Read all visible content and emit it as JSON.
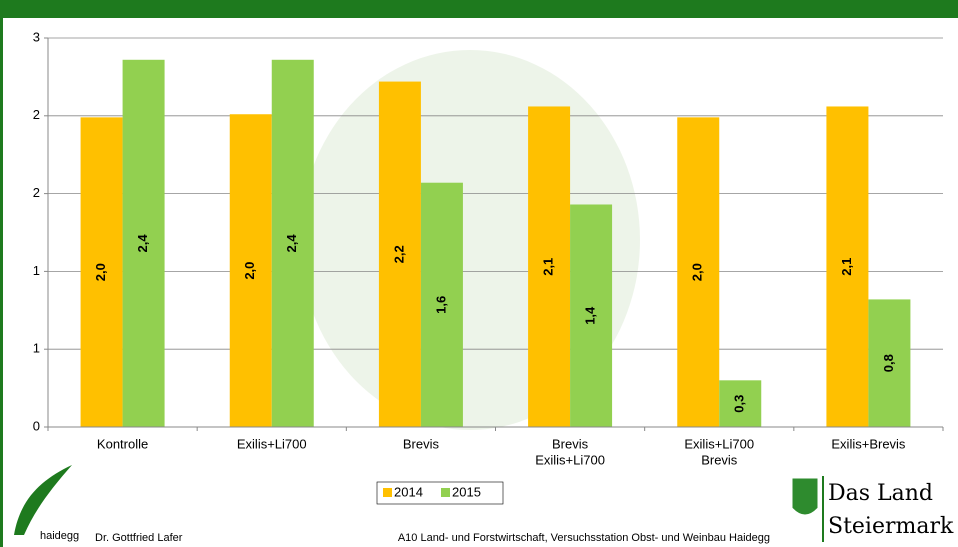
{
  "chart_data": {
    "type": "bar",
    "categories": [
      [
        "Kontrolle"
      ],
      [
        "Exilis+Li700"
      ],
      [
        "Brevis"
      ],
      [
        "Brevis",
        "Exilis+Li700"
      ],
      [
        "Exilis+Li700",
        "Brevis"
      ],
      [
        "Exilis+Brevis"
      ]
    ],
    "series": [
      {
        "name": "2014",
        "color": "#ffc000",
        "values": [
          1.99,
          2.01,
          2.22,
          2.06,
          1.99,
          2.06
        ],
        "value_labels": [
          "2,0",
          "2,0",
          "2,2",
          "2,1",
          "2,0",
          "2,1"
        ]
      },
      {
        "name": "2015",
        "color": "#92d050",
        "values": [
          2.36,
          2.36,
          1.57,
          1.43,
          0.3,
          0.82
        ],
        "value_labels": [
          "2,4",
          "2,4",
          "1,6",
          "1,4",
          "0,3",
          "0,8"
        ]
      }
    ],
    "ylim": [
      0,
      2.5
    ],
    "yticks": [
      0,
      {
        "value": 0.5,
        "label": "1"
      },
      1,
      {
        "value": 1.5,
        "label": "2"
      },
      2,
      {
        "value": 2.5,
        "label": "3"
      }
    ],
    "grid": true,
    "legend": "bottom"
  },
  "footer": {
    "logo_text": "haidegg",
    "author": "Dr. Gottfried Lafer",
    "institution": "A10 Land- und Forstwirtschaft, Versuchsstation Obst- und Weinbau Haidegg",
    "brand_line1": "Das Land",
    "brand_line2": "Steiermark"
  }
}
